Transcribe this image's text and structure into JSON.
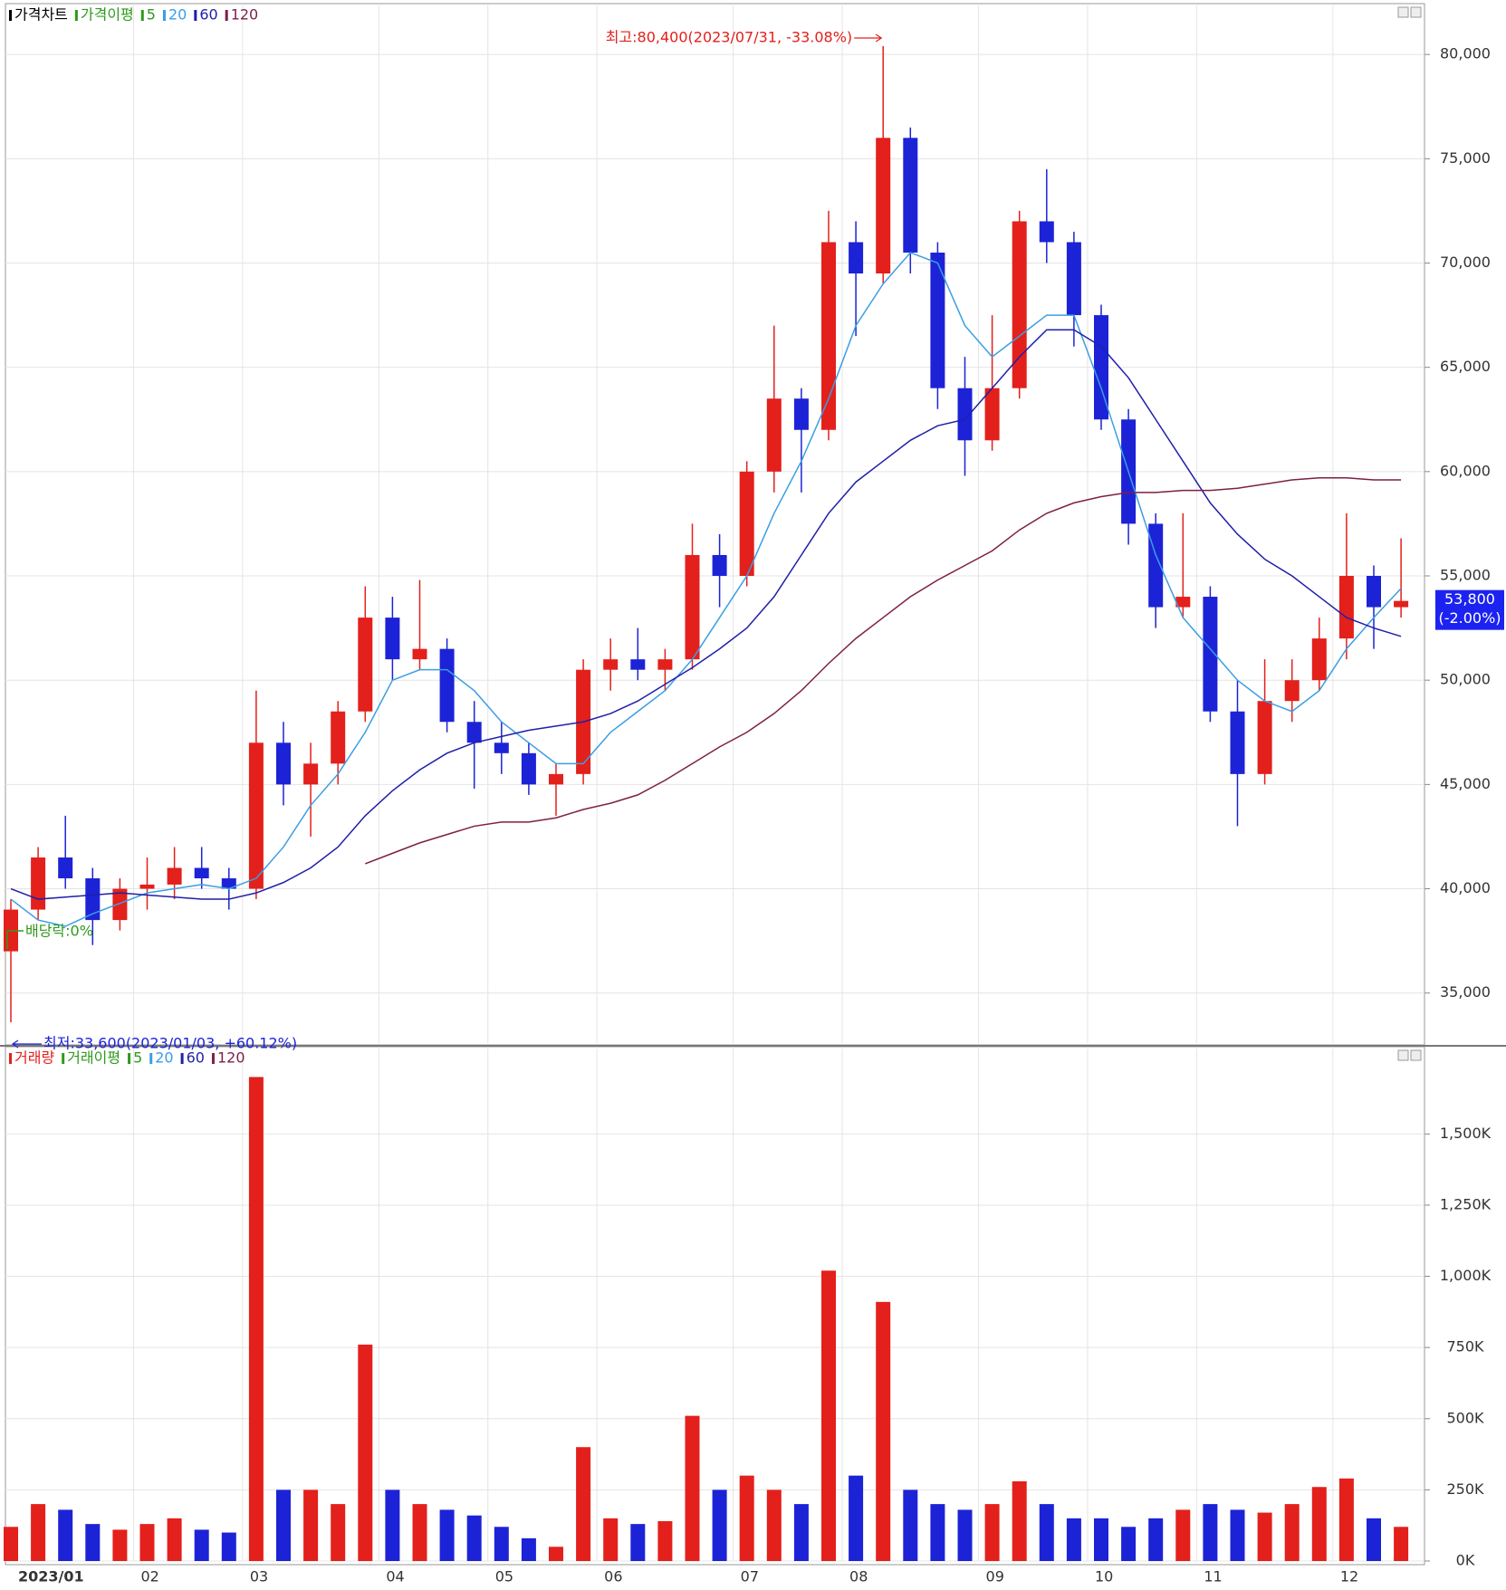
{
  "chart_data": [
    {
      "type": "candlestick",
      "legend": [
        "가격차트",
        "가격이평",
        "5"
      ],
      "legend_colors": [
        "#000000",
        "#2e9a1c",
        "#2e9a1c"
      ],
      "categories": [
        "2023/01",
        null,
        null,
        null,
        null,
        "02",
        null,
        null,
        null,
        "03",
        null,
        null,
        null,
        null,
        "04",
        null,
        null,
        null,
        "05",
        null,
        null,
        null,
        "06",
        null,
        null,
        null,
        null,
        "07",
        null,
        null,
        null,
        "08",
        null,
        null,
        null,
        null,
        "09",
        null,
        null,
        null,
        "10",
        null,
        null,
        null,
        "11",
        null,
        null,
        null,
        null,
        "12",
        null,
        null
      ],
      "open": [
        37000,
        39000,
        41500,
        40500,
        38500,
        40000,
        40200,
        41000,
        40500,
        40000,
        47000,
        45000,
        46000,
        48500,
        53000,
        51000,
        51500,
        48000,
        47000,
        46500,
        45000,
        45500,
        50500,
        51000,
        50500,
        51000,
        56000,
        55000,
        60000,
        63500,
        62000,
        71000,
        69500,
        76000,
        70500,
        64000,
        61500,
        64000,
        72000,
        71000,
        67500,
        62500,
        57500,
        53500,
        54000,
        48500,
        45500,
        49000,
        50000,
        52000,
        55000,
        53500
      ],
      "high": [
        39500,
        42000,
        43500,
        41000,
        40500,
        41500,
        42000,
        42000,
        41000,
        49500,
        48000,
        47000,
        49000,
        54500,
        54000,
        54800,
        52000,
        49000,
        48000,
        47000,
        46000,
        51000,
        52000,
        52500,
        51500,
        57500,
        57000,
        60500,
        67000,
        64000,
        72500,
        72000,
        80400,
        76500,
        71000,
        65500,
        67500,
        72500,
        74500,
        71500,
        68000,
        63000,
        58000,
        58000,
        54500,
        50000,
        51000,
        51000,
        53000,
        58000,
        55500,
        56800
      ],
      "low": [
        33600,
        38500,
        40000,
        37300,
        38000,
        39000,
        39500,
        40000,
        39000,
        39500,
        44000,
        42500,
        45000,
        48000,
        50000,
        50500,
        47500,
        44800,
        45500,
        44500,
        43500,
        45000,
        49500,
        50000,
        49500,
        50500,
        53500,
        54500,
        59000,
        59000,
        61500,
        66500,
        69000,
        69500,
        63000,
        59800,
        61000,
        63500,
        70000,
        66000,
        62000,
        56500,
        52500,
        53000,
        48000,
        43000,
        45000,
        48000,
        49500,
        51000,
        51500,
        53000
      ],
      "close": [
        39000,
        41500,
        40500,
        38500,
        40000,
        40200,
        41000,
        40500,
        40000,
        47000,
        45000,
        46000,
        48500,
        53000,
        51000,
        51500,
        48000,
        47000,
        46500,
        45000,
        45500,
        50500,
        51000,
        50500,
        51000,
        56000,
        55000,
        60000,
        63500,
        62000,
        71000,
        69500,
        76000,
        70500,
        64000,
        61500,
        64000,
        72000,
        71000,
        67500,
        62500,
        57500,
        53500,
        54000,
        48500,
        45500,
        49000,
        50000,
        52000,
        55000,
        53500,
        53800
      ],
      "up_color": "#e3201b",
      "down_color": "#1c23d6",
      "series": [
        {
          "name": "20",
          "color": "#3a9ee4",
          "values": [
            39500,
            38500,
            38200,
            38800,
            39300,
            39800,
            40000,
            40200,
            40000,
            40500,
            42000,
            44000,
            45500,
            47500,
            50000,
            50500,
            50500,
            49500,
            48000,
            47000,
            46000,
            46000,
            47500,
            48500,
            49500,
            51000,
            53000,
            55000,
            58000,
            60500,
            63500,
            67000,
            69000,
            70500,
            70000,
            67000,
            65500,
            66500,
            67500,
            67500,
            64000,
            60000,
            56000,
            53000,
            51500,
            50000,
            49000,
            48500,
            49500,
            51500,
            53000,
            54400
          ]
        },
        {
          "name": "60",
          "color": "#1f1fa8",
          "values": [
            40000,
            39500,
            39600,
            39700,
            39800,
            39700,
            39600,
            39500,
            39500,
            39800,
            40300,
            41000,
            42000,
            43500,
            44700,
            45700,
            46500,
            47000,
            47300,
            47600,
            47800,
            48000,
            48400,
            49000,
            49800,
            50600,
            51500,
            52500,
            54000,
            56000,
            58000,
            59500,
            60500,
            61500,
            62200,
            62500,
            64000,
            65500,
            66800,
            66800,
            66000,
            64500,
            62500,
            60500,
            58500,
            57000,
            55800,
            55000,
            54000,
            53000,
            52500,
            52100
          ]
        },
        {
          "name": "120",
          "color": "#7d1f47",
          "values": [
            null,
            null,
            null,
            null,
            null,
            null,
            null,
            null,
            null,
            null,
            null,
            null,
            null,
            41200,
            41700,
            42200,
            42600,
            43000,
            43200,
            43200,
            43400,
            43800,
            44100,
            44500,
            45200,
            46000,
            46800,
            47500,
            48400,
            49500,
            50800,
            52000,
            53000,
            54000,
            54800,
            55500,
            56200,
            57200,
            58000,
            58500,
            58800,
            59000,
            59000,
            59100,
            59100,
            59200,
            59400,
            59600,
            59700,
            59700,
            59600,
            59600
          ]
        }
      ],
      "ylim": [
        32600,
        82350
      ],
      "yticks": [
        {
          "value": 35000,
          "label": "35,000"
        },
        {
          "value": 40000,
          "label": "40,000"
        },
        {
          "value": 45000,
          "label": "45,000"
        },
        {
          "value": 50000,
          "label": "50,000"
        },
        {
          "value": 55000,
          "label": "55,000"
        },
        {
          "value": 60000,
          "label": "60,000"
        },
        {
          "value": 65000,
          "label": "65,000"
        },
        {
          "value": 70000,
          "label": "70,000"
        },
        {
          "value": 75000,
          "label": "75,000"
        },
        {
          "value": 80000,
          "label": "80,000"
        }
      ],
      "grid": true,
      "annotations": {
        "high": "최고:80,400(2023/07/31, -33.08%)",
        "low": "최저:33,600(2023/01/03, +60.12%)",
        "dividend": "배당락:0%"
      },
      "last_label": "53,800",
      "last_change": "(-2.00%)",
      "last_value": 53800
    },
    {
      "type": "bar",
      "legend": [
        "거래량",
        "거래이평",
        "5",
        "20",
        "60",
        "120"
      ],
      "legend_colors": [
        "#e3201b",
        "#2e9a1c",
        "#2e9a1c",
        "#3a9ee4",
        "#1f1fa8",
        "#7d1f47"
      ],
      "values": [
        120000,
        200000,
        180000,
        130000,
        110000,
        130000,
        150000,
        110000,
        100000,
        1700000,
        250000,
        250000,
        200000,
        760000,
        250000,
        200000,
        180000,
        160000,
        120000,
        80000,
        50000,
        400000,
        150000,
        130000,
        140000,
        510000,
        250000,
        300000,
        250000,
        200000,
        1020000,
        300000,
        910000,
        250000,
        200000,
        180000,
        200000,
        280000,
        200000,
        150000,
        150000,
        120000,
        150000,
        180000,
        200000,
        180000,
        170000,
        200000,
        260000,
        290000,
        150000,
        120000
      ],
      "ylim": [
        0,
        1800000
      ],
      "yticks": [
        {
          "value": 0,
          "label": "0K"
        },
        {
          "value": 250000,
          "label": "250K"
        },
        {
          "value": 500000,
          "label": "500K"
        },
        {
          "value": 750000,
          "label": "750K"
        },
        {
          "value": 1000000,
          "label": "1,000K"
        },
        {
          "value": 1250000,
          "label": "1,250K"
        },
        {
          "value": 1500000,
          "label": "1,500K"
        }
      ],
      "grid": true
    }
  ]
}
